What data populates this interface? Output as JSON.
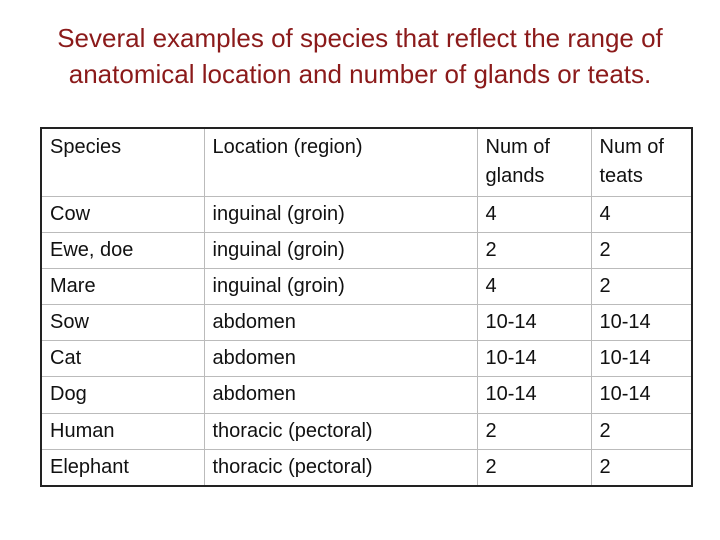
{
  "title": {
    "line1": "Several examples of species that reflect the range of",
    "line2": "anatomical location and number of glands or teats."
  },
  "table": {
    "headers": [
      "Species",
      "Location (region)",
      "Num of glands",
      "Num of teats"
    ],
    "rows": [
      [
        "Cow",
        "inguinal (groin)",
        "4",
        "4"
      ],
      [
        "Ewe, doe",
        "inguinal (groin)",
        "2",
        "2"
      ],
      [
        "Mare",
        "inguinal (groin)",
        "4",
        "2"
      ],
      [
        "Sow",
        "abdomen",
        "10-14",
        "10-14"
      ],
      [
        "Cat",
        "abdomen",
        "10-14",
        "10-14"
      ],
      [
        "Dog",
        "abdomen",
        "10-14",
        "10-14"
      ],
      [
        "Human",
        "thoracic (pectoral)",
        "2",
        "2"
      ],
      [
        "Elephant",
        "thoracic (pectoral)",
        "2",
        "2"
      ]
    ]
  }
}
